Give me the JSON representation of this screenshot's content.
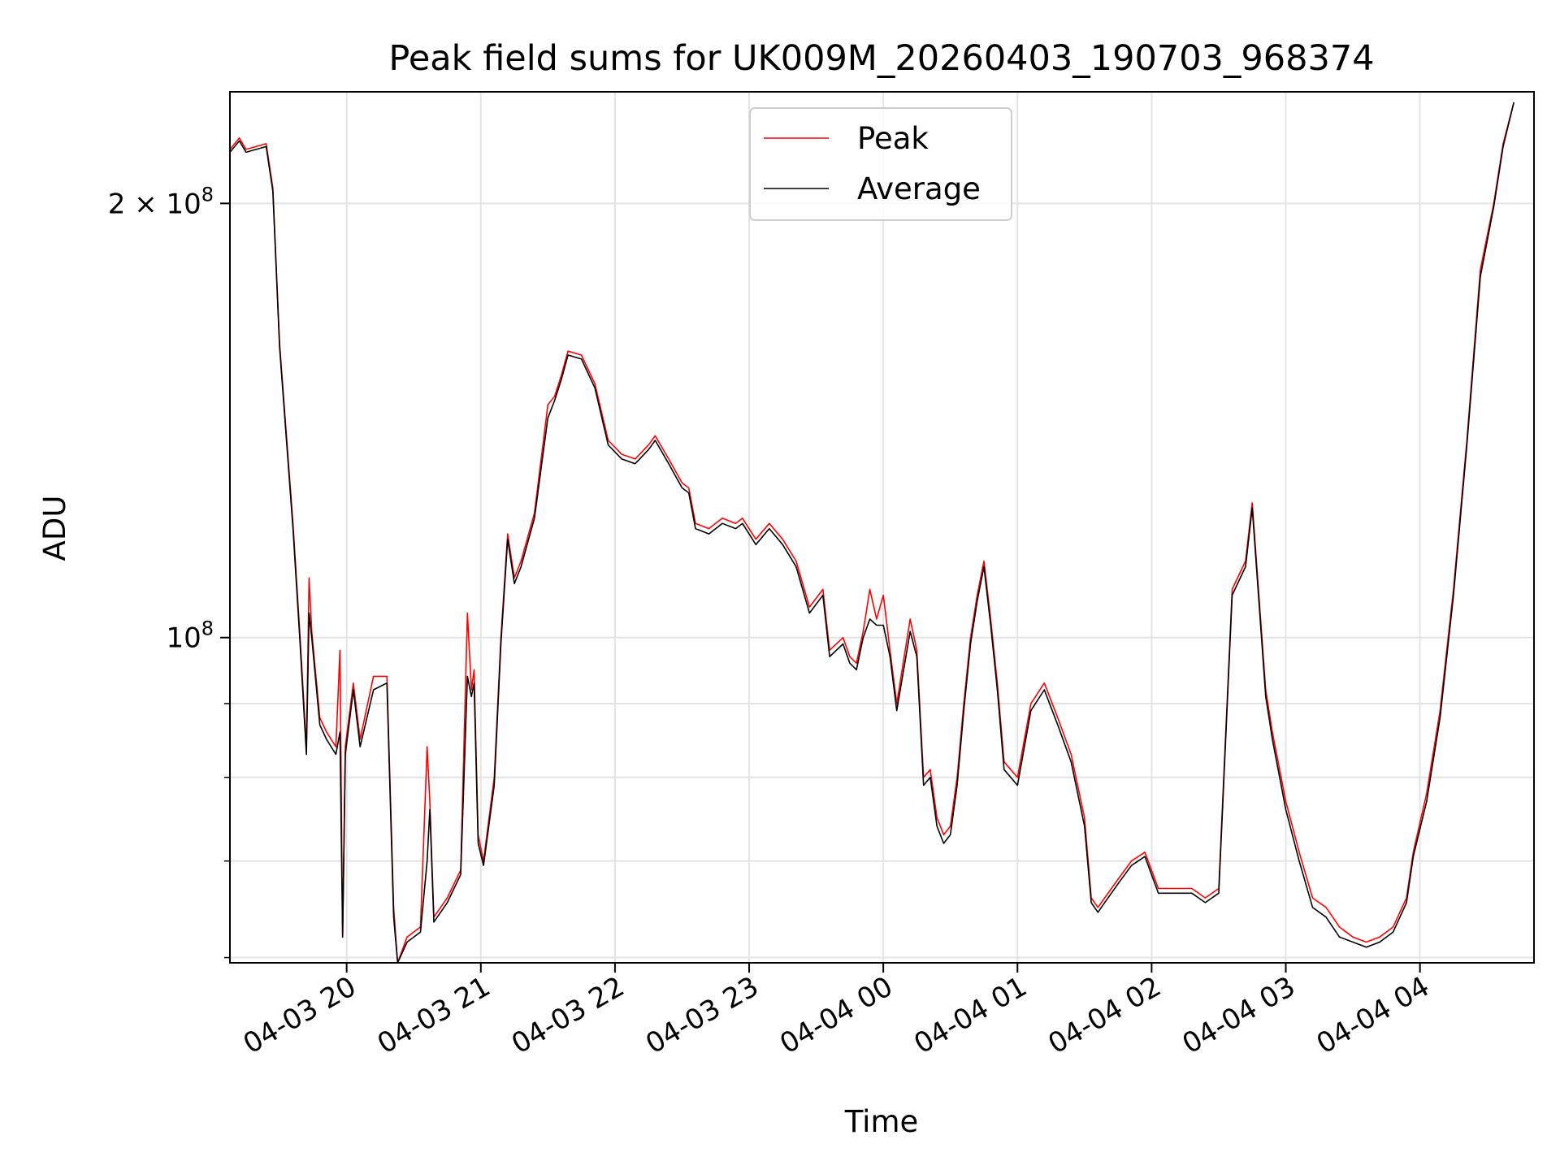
{
  "chart_data": {
    "type": "line",
    "title": "Peak field sums for UK009M_20260403_190703_968374",
    "xlabel": "Time",
    "ylabel": "ADU",
    "yscale": "log",
    "xlim_hours": [
      19.13,
      28.85
    ],
    "ylim": [
      59500000,
      239000000
    ],
    "grid": true,
    "legend_position": "top-center",
    "x_tick_hours": [
      20,
      21,
      22,
      23,
      24,
      25,
      26,
      27,
      28
    ],
    "x_tick_labels": [
      "04-03 20",
      "04-03 21",
      "04-03 22",
      "04-03 23",
      "04-04 00",
      "04-04 01",
      "04-04 02",
      "04-04 03",
      "04-04 04"
    ],
    "y_major_ticks": [
      {
        "value": 100000000,
        "base": "10",
        "exp": "8",
        "mantissa": ""
      },
      {
        "value": 200000000,
        "base": "10",
        "exp": "8",
        "mantissa": "2 × "
      }
    ],
    "y_minor_ticks": [
      60000000,
      70000000,
      80000000,
      90000000
    ],
    "series": [
      {
        "name": "Peak",
        "color": "#ff0000",
        "hours": [
          19.13,
          19.2,
          19.25,
          19.4,
          19.45,
          19.5,
          19.6,
          19.65,
          19.7,
          19.72,
          19.74,
          19.8,
          19.85,
          19.92,
          19.95,
          19.97,
          19.99,
          20.05,
          20.1,
          20.2,
          20.3,
          20.35,
          20.38,
          20.45,
          20.55,
          20.6,
          20.62,
          20.65,
          20.75,
          20.85,
          20.9,
          20.93,
          20.95,
          20.98,
          21.02,
          21.1,
          21.15,
          21.2,
          21.25,
          21.3,
          21.4,
          21.5,
          21.55,
          21.6,
          21.65,
          21.75,
          21.85,
          21.95,
          22.05,
          22.15,
          22.25,
          22.3,
          22.4,
          22.5,
          22.55,
          22.6,
          22.7,
          22.8,
          22.9,
          22.95,
          23.05,
          23.15,
          23.25,
          23.35,
          23.45,
          23.55,
          23.6,
          23.7,
          23.75,
          23.8,
          23.85,
          23.9,
          23.95,
          24.0,
          24.05,
          24.1,
          24.2,
          24.25,
          24.3,
          24.35,
          24.4,
          24.45,
          24.5,
          24.55,
          24.6,
          24.65,
          24.7,
          24.75,
          24.8,
          24.85,
          24.9,
          25.0,
          25.1,
          25.2,
          25.3,
          25.4,
          25.5,
          25.55,
          25.6,
          25.65,
          25.75,
          25.85,
          25.95,
          26.05,
          26.15,
          26.25,
          26.3,
          26.4,
          26.5,
          26.6,
          26.7,
          26.75,
          26.85,
          26.9,
          27.0,
          27.1,
          27.2,
          27.3,
          27.4,
          27.5,
          27.6,
          27.7,
          27.8,
          27.9,
          27.95,
          28.05,
          28.15,
          28.25,
          28.35,
          28.45,
          28.55,
          28.62,
          28.7
        ],
        "values": [
          218000000,
          222000000,
          218000000,
          220000000,
          205000000,
          160000000,
          120000000,
          101000000,
          84000000,
          110000000,
          101000000,
          88000000,
          86000000,
          84000000,
          98000000,
          62000000,
          84000000,
          93000000,
          85000000,
          94000000,
          94000000,
          65000000,
          59500000,
          62000000,
          63000000,
          84000000,
          77000000,
          64000000,
          66000000,
          69000000,
          104000000,
          92000000,
          95000000,
          73000000,
          70000000,
          80000000,
          100000000,
          118000000,
          110000000,
          113000000,
          122000000,
          145000000,
          147000000,
          152000000,
          158000000,
          157000000,
          150000000,
          137000000,
          134000000,
          133000000,
          136000000,
          138000000,
          133000000,
          128000000,
          127000000,
          120000000,
          119000000,
          121000000,
          120000000,
          121000000,
          117000000,
          120000000,
          117000000,
          113000000,
          105000000,
          108000000,
          98000000,
          100000000,
          97000000,
          96000000,
          101000000,
          108000000,
          103000000,
          107000000,
          98000000,
          90000000,
          103000000,
          98000000,
          80000000,
          81000000,
          75000000,
          73000000,
          74000000,
          80000000,
          90000000,
          100000000,
          107000000,
          113000000,
          103000000,
          93000000,
          82000000,
          80000000,
          90000000,
          93000000,
          88000000,
          83000000,
          75000000,
          66000000,
          65000000,
          66000000,
          68000000,
          70000000,
          71000000,
          67000000,
          67000000,
          67000000,
          67000000,
          66000000,
          67000000,
          108000000,
          113000000,
          124000000,
          92000000,
          86000000,
          77000000,
          71000000,
          66000000,
          65000000,
          63000000,
          62000000,
          61500000,
          62000000,
          63000000,
          66000000,
          71000000,
          78000000,
          89000000,
          108000000,
          137000000,
          180000000,
          200000000,
          220000000,
          235000000
        ]
      },
      {
        "name": "Average",
        "color": "#000000",
        "hours": [
          19.13,
          19.2,
          19.25,
          19.4,
          19.45,
          19.5,
          19.6,
          19.65,
          19.7,
          19.72,
          19.74,
          19.8,
          19.85,
          19.92,
          19.95,
          19.97,
          19.99,
          20.05,
          20.1,
          20.2,
          20.3,
          20.35,
          20.38,
          20.45,
          20.55,
          20.6,
          20.62,
          20.65,
          20.75,
          20.85,
          20.9,
          20.93,
          20.95,
          20.98,
          21.02,
          21.1,
          21.15,
          21.2,
          21.25,
          21.3,
          21.4,
          21.5,
          21.55,
          21.6,
          21.65,
          21.75,
          21.85,
          21.95,
          22.05,
          22.15,
          22.25,
          22.3,
          22.4,
          22.5,
          22.55,
          22.6,
          22.7,
          22.8,
          22.9,
          22.95,
          23.05,
          23.15,
          23.25,
          23.35,
          23.45,
          23.55,
          23.6,
          23.7,
          23.75,
          23.8,
          23.85,
          23.9,
          23.95,
          24.0,
          24.05,
          24.1,
          24.2,
          24.25,
          24.3,
          24.35,
          24.4,
          24.45,
          24.5,
          24.55,
          24.6,
          24.65,
          24.7,
          24.75,
          24.8,
          24.85,
          24.9,
          25.0,
          25.1,
          25.2,
          25.3,
          25.4,
          25.5,
          25.55,
          25.6,
          25.65,
          25.75,
          25.85,
          25.95,
          26.05,
          26.15,
          26.25,
          26.3,
          26.4,
          26.5,
          26.6,
          26.7,
          26.75,
          26.85,
          26.9,
          27.0,
          27.1,
          27.2,
          27.3,
          27.4,
          27.5,
          27.6,
          27.7,
          27.8,
          27.9,
          27.95,
          28.05,
          28.15,
          28.25,
          28.35,
          28.45,
          28.55,
          28.62,
          28.7
        ],
        "values": [
          217000000,
          221000000,
          217000000,
          219000000,
          204000000,
          159000000,
          119000000,
          100000000,
          83000000,
          104000000,
          100000000,
          87000000,
          85000000,
          83000000,
          86000000,
          62000000,
          83000000,
          92000000,
          84000000,
          92000000,
          93000000,
          64000000,
          59500000,
          61500000,
          62500000,
          70000000,
          76000000,
          63500000,
          65500000,
          68500000,
          94000000,
          91000000,
          93000000,
          72000000,
          69500000,
          79000000,
          99000000,
          117000000,
          109000000,
          112000000,
          121000000,
          142000000,
          146000000,
          151000000,
          157000000,
          156000000,
          149000000,
          136000000,
          133000000,
          132000000,
          135000000,
          137000000,
          132000000,
          127000000,
          126000000,
          119000000,
          118000000,
          120000000,
          119000000,
          120000000,
          116000000,
          119000000,
          116000000,
          112000000,
          104000000,
          107000000,
          97000000,
          99000000,
          96000000,
          95000000,
          100000000,
          103000000,
          102000000,
          102000000,
          97000000,
          89000000,
          101000000,
          97000000,
          79000000,
          80000000,
          74000000,
          72000000,
          73000000,
          79000000,
          89000000,
          99000000,
          106000000,
          112000000,
          102000000,
          92000000,
          81000000,
          79000000,
          89000000,
          92000000,
          87000000,
          82000000,
          74000000,
          65500000,
          64500000,
          65500000,
          67500000,
          69500000,
          70500000,
          66500000,
          66500000,
          66500000,
          66500000,
          65500000,
          66500000,
          107000000,
          112000000,
          123000000,
          91000000,
          85000000,
          76000000,
          70000000,
          65000000,
          64000000,
          62000000,
          61500000,
          61000000,
          61500000,
          62500000,
          65500000,
          70500000,
          77000000,
          88000000,
          107000000,
          136000000,
          178000000,
          199000000,
          219000000,
          235000000
        ]
      }
    ]
  }
}
